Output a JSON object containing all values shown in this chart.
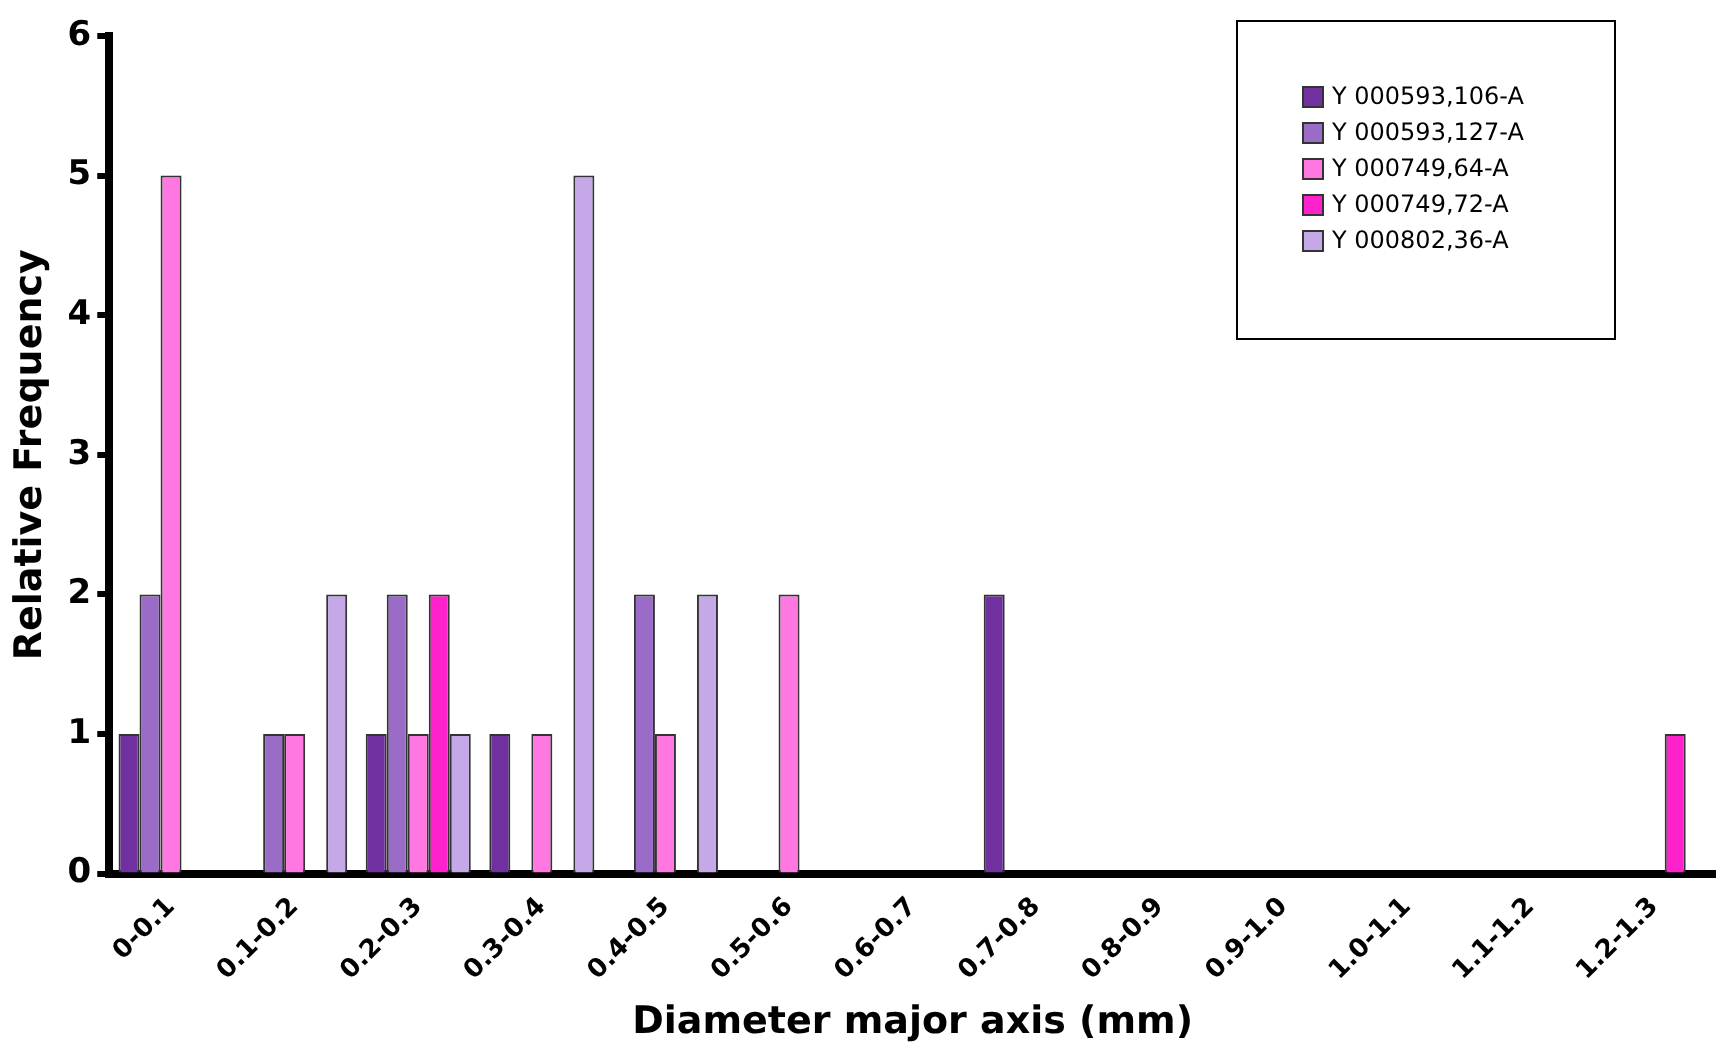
{
  "chart_data": {
    "type": "bar",
    "xlabel": "Diameter major axis (mm)",
    "ylabel": "Relative Frequency",
    "categories": [
      "0-0.1",
      "0.1-0.2",
      "0.2-0.3",
      "0.3-0.4",
      "0.4-0.5",
      "0.5-0.6",
      "0.6-0.7",
      "0.7-0.8",
      "0.8-0.9",
      "0.9-1.0",
      "1.0-1.1",
      "1.1-1.2",
      "1.2-1.3"
    ],
    "series": [
      {
        "name": "Y 000593,106-A",
        "color": "#7030a0",
        "values": [
          1,
          0,
          1,
          1,
          0,
          0,
          0,
          2,
          0,
          0,
          0,
          0,
          0
        ]
      },
      {
        "name": "Y 000593,127-A",
        "color": "#9a6cc8",
        "values": [
          2,
          1,
          2,
          0,
          2,
          0,
          0,
          0,
          0,
          0,
          0,
          0,
          0
        ]
      },
      {
        "name": "Y 000749,64-A",
        "color": "#ff77e0",
        "values": [
          5,
          1,
          1,
          1,
          1,
          2,
          0,
          0,
          0,
          0,
          0,
          0,
          0
        ]
      },
      {
        "name": "Y 000749,72-A",
        "color": "#ff22cc",
        "values": [
          0,
          0,
          2,
          0,
          0,
          0,
          0,
          0,
          0,
          0,
          0,
          0,
          1
        ]
      },
      {
        "name": "Y 000802,36-A",
        "color": "#c4a8e8",
        "values": [
          0,
          2,
          1,
          5,
          2,
          0,
          0,
          0,
          0,
          0,
          0,
          0,
          0
        ]
      }
    ],
    "ylim": [
      0,
      6
    ],
    "yticks": [
      0,
      1,
      2,
      3,
      4,
      5,
      6
    ],
    "grid": false,
    "legend": "top right"
  }
}
